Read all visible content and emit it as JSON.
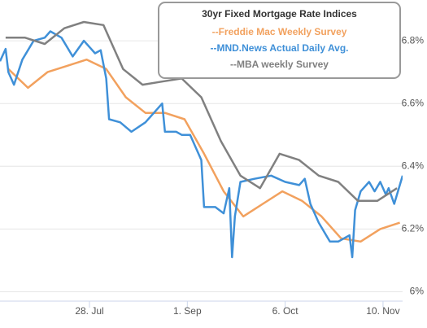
{
  "chart_data": {
    "type": "line",
    "legend_title": "30yr Fixed Mortgage Rate Indices",
    "legend": "top-right",
    "grid": true,
    "xlim": [
      "06-26",
      "11-17"
    ],
    "xticks": [
      {
        "value": "07-28",
        "label": "28. Jul"
      },
      {
        "value": "09-01",
        "label": "1. Sep"
      },
      {
        "value": "10-06",
        "label": "6. Oct"
      },
      {
        "value": "11-10",
        "label": "10. Nov"
      }
    ],
    "ylim": [
      5.97,
      6.93
    ],
    "yticks": [
      {
        "value": 6.0,
        "label": "6%"
      },
      {
        "value": 6.2,
        "label": "6.2%"
      },
      {
        "value": 6.4,
        "label": "6.4%"
      },
      {
        "value": 6.6,
        "label": "6.6%"
      },
      {
        "value": 6.8,
        "label": "6.8%"
      }
    ],
    "series": [
      {
        "name": "--Freddie Mac Weekly Survey",
        "color": "#f2a15e",
        "x": [
          "06-29",
          "07-06",
          "07-13",
          "07-20",
          "07-27",
          "08-03",
          "08-10",
          "08-17",
          "08-24",
          "08-31",
          "09-07",
          "09-14",
          "09-21",
          "09-28",
          "10-05",
          "10-12",
          "10-19",
          "10-26",
          "11-02",
          "11-09",
          "11-16"
        ],
        "values": [
          6.71,
          6.65,
          6.7,
          6.72,
          6.74,
          6.71,
          6.62,
          6.57,
          6.57,
          6.55,
          6.44,
          6.32,
          6.24,
          6.28,
          6.32,
          6.29,
          6.24,
          6.17,
          6.16,
          6.2,
          6.22
        ]
      },
      {
        "name": "--MND.News Actual Daily Avg.",
        "color": "#3f90d8",
        "x": [
          "06-26",
          "06-28",
          "06-29",
          "07-01",
          "07-04",
          "07-08",
          "07-12",
          "07-14",
          "07-18",
          "07-22",
          "07-26",
          "07-30",
          "08-01",
          "08-03",
          "08-04",
          "08-08",
          "08-12",
          "08-17",
          "08-21",
          "08-23",
          "08-24",
          "08-28",
          "08-30",
          "09-02",
          "09-06",
          "09-07",
          "09-11",
          "09-14",
          "09-16",
          "09-17",
          "09-18",
          "09-20",
          "09-25",
          "10-01",
          "10-06",
          "10-11",
          "10-13",
          "10-15",
          "10-18",
          "10-22",
          "10-25",
          "10-29",
          "10-30",
          "10-31",
          "11-02",
          "11-05",
          "11-07",
          "11-09",
          "11-11",
          "11-12",
          "11-14",
          "11-17"
        ],
        "values": [
          6.735,
          6.774,
          6.7,
          6.66,
          6.74,
          6.8,
          6.81,
          6.83,
          6.81,
          6.75,
          6.8,
          6.76,
          6.77,
          6.68,
          6.55,
          6.54,
          6.51,
          6.54,
          6.58,
          6.6,
          6.51,
          6.51,
          6.5,
          6.5,
          6.42,
          6.27,
          6.27,
          6.25,
          6.33,
          6.11,
          6.24,
          6.35,
          6.36,
          6.37,
          6.35,
          6.34,
          6.36,
          6.28,
          6.22,
          6.16,
          6.16,
          6.18,
          6.11,
          6.26,
          6.32,
          6.35,
          6.32,
          6.35,
          6.31,
          6.33,
          6.28,
          6.37
        ]
      },
      {
        "name": "--MBA weekly Survey",
        "color": "#808080",
        "x": [
          "06-28",
          "07-05",
          "07-12",
          "07-19",
          "07-26",
          "08-02",
          "08-09",
          "08-16",
          "08-23",
          "08-30",
          "09-06",
          "09-13",
          "09-20",
          "09-27",
          "10-04",
          "10-11",
          "10-18",
          "10-25",
          "11-01",
          "11-08",
          "11-15"
        ],
        "values": [
          6.81,
          6.81,
          6.79,
          6.84,
          6.86,
          6.85,
          6.71,
          6.66,
          6.67,
          6.68,
          6.62,
          6.48,
          6.37,
          6.33,
          6.44,
          6.42,
          6.37,
          6.35,
          6.29,
          6.29,
          6.33
        ]
      }
    ]
  }
}
